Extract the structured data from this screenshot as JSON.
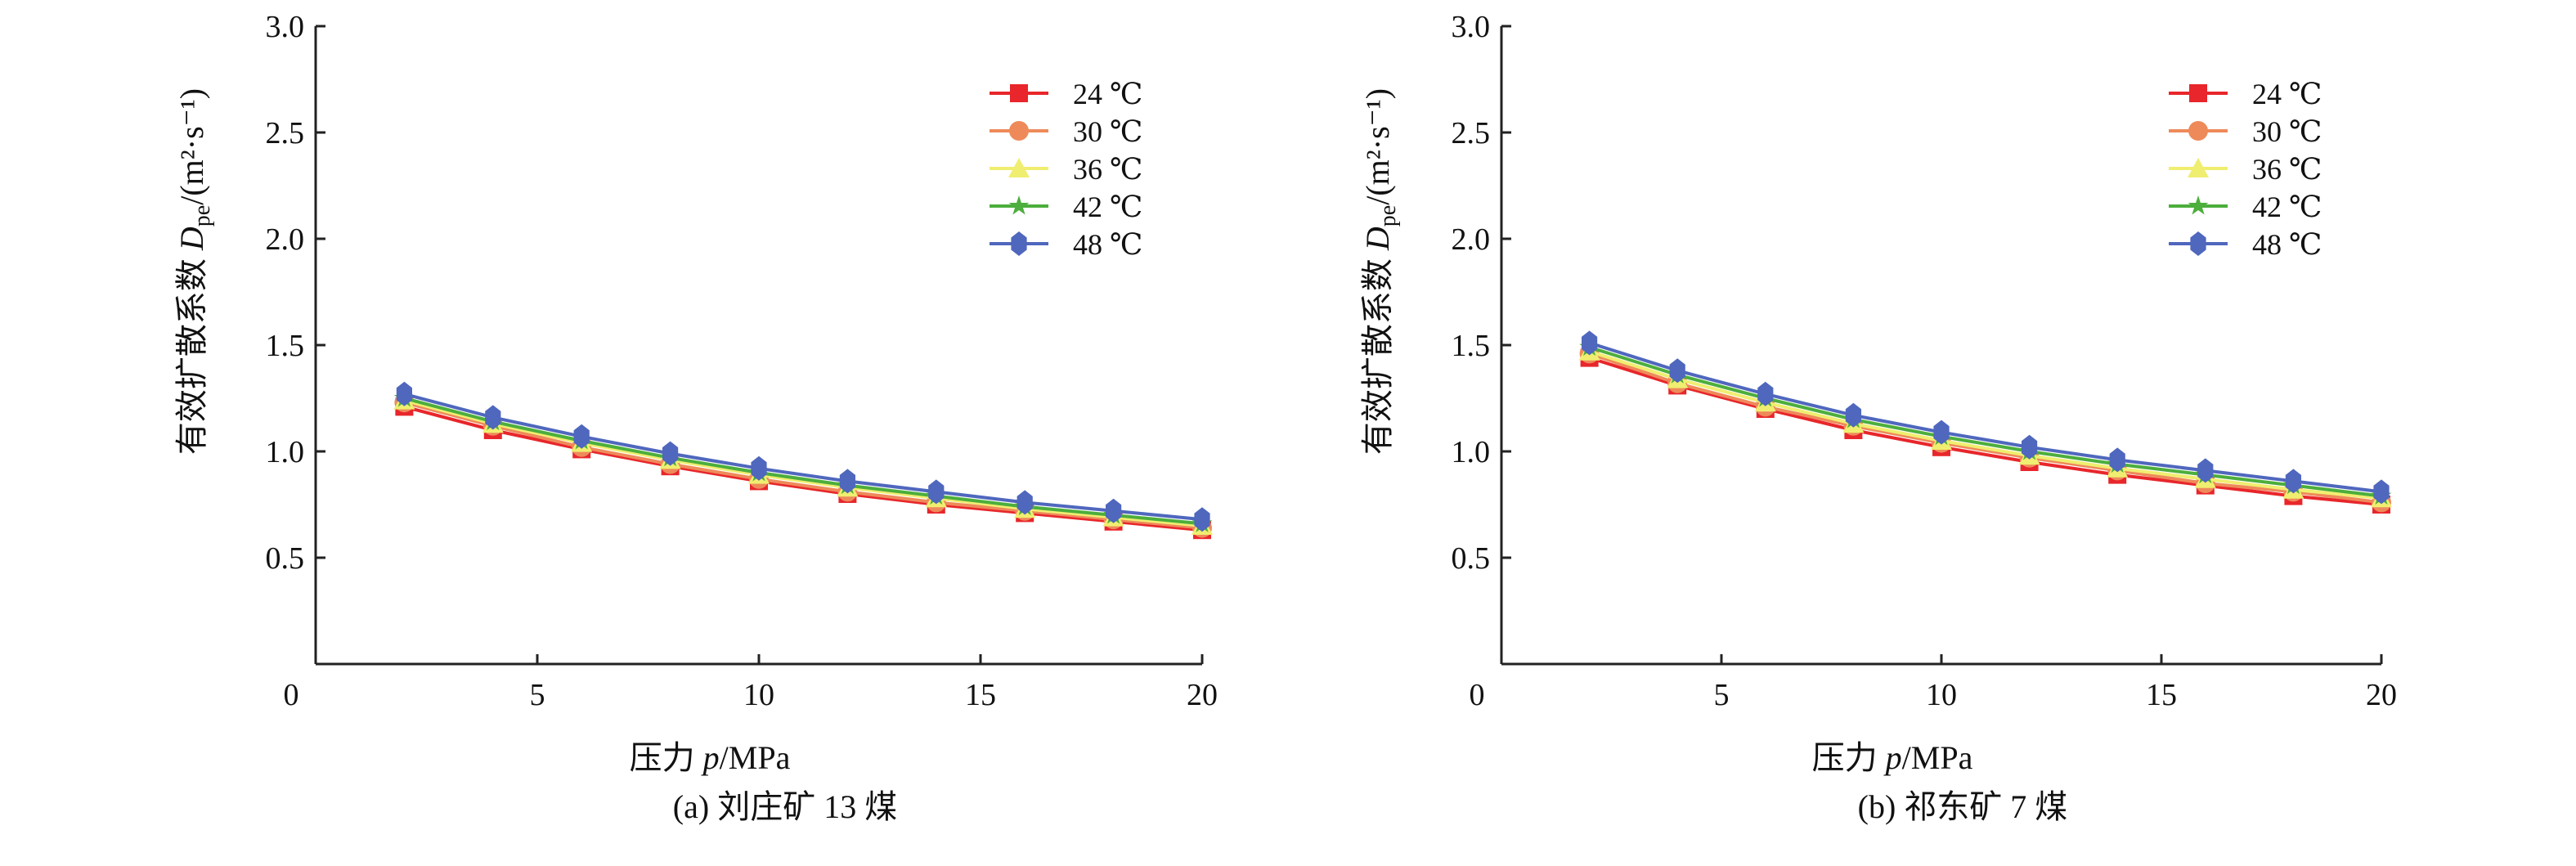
{
  "colors": {
    "24": "#e8262b",
    "30": "#ee8a5a",
    "36": "#f0ee70",
    "42": "#4cae3c",
    "48": "#4f67bd"
  },
  "chart_data": [
    {
      "type": "line",
      "title": "",
      "caption": "(a) 刘庄矿 13 煤",
      "xlabel": "压力 p/MPa",
      "ylabel_prefix": "有效扩散系数 ",
      "ylabel_var": "D",
      "ylabel_sub": "pe",
      "ylabel_unit": "/(m²·s⁻¹)",
      "xlim": [
        0,
        20
      ],
      "ylim": [
        0,
        3.0
      ],
      "xticks": [
        "0",
        "5",
        "10",
        "15",
        "20"
      ],
      "yticks": [
        "0.5",
        "1.0",
        "1.5",
        "2.0",
        "2.5",
        "3.0"
      ],
      "legend_position": "top-right",
      "x": [
        2,
        4,
        6,
        8,
        10,
        12,
        14,
        16,
        18,
        20
      ],
      "series": [
        {
          "name": "24 ℃",
          "marker": "square",
          "values": [
            1.21,
            1.1,
            1.01,
            0.93,
            0.86,
            0.8,
            0.75,
            0.71,
            0.67,
            0.63
          ]
        },
        {
          "name": "30 ℃",
          "marker": "circle",
          "values": [
            1.23,
            1.12,
            1.02,
            0.94,
            0.87,
            0.81,
            0.76,
            0.72,
            0.68,
            0.64
          ]
        },
        {
          "name": "36 ℃",
          "marker": "triangle",
          "values": [
            1.24,
            1.13,
            1.04,
            0.96,
            0.89,
            0.83,
            0.78,
            0.73,
            0.69,
            0.65
          ]
        },
        {
          "name": "42 ℃",
          "marker": "star",
          "values": [
            1.25,
            1.14,
            1.05,
            0.97,
            0.9,
            0.84,
            0.79,
            0.74,
            0.7,
            0.66
          ]
        },
        {
          "name": "48 ℃",
          "marker": "hexagon",
          "values": [
            1.27,
            1.16,
            1.07,
            0.99,
            0.92,
            0.86,
            0.81,
            0.76,
            0.72,
            0.68
          ]
        }
      ]
    },
    {
      "type": "line",
      "title": "",
      "caption": "(b) 祁东矿 7 煤",
      "xlabel": "压力 p/MPa",
      "ylabel_prefix": "有效扩散系数 ",
      "ylabel_var": "D",
      "ylabel_sub": "pe",
      "ylabel_unit": "/(m²·s⁻¹)",
      "xlim": [
        0,
        20
      ],
      "ylim": [
        0,
        3.0
      ],
      "xticks": [
        "0",
        "5",
        "10",
        "15",
        "20"
      ],
      "yticks": [
        "0.5",
        "1.0",
        "1.5",
        "2.0",
        "2.5",
        "3.0"
      ],
      "legend_position": "top-right",
      "x": [
        2,
        4,
        6,
        8,
        10,
        12,
        14,
        16,
        18,
        20
      ],
      "series": [
        {
          "name": "24 ℃",
          "marker": "square",
          "values": [
            1.44,
            1.31,
            1.2,
            1.1,
            1.02,
            0.95,
            0.89,
            0.84,
            0.79,
            0.75
          ]
        },
        {
          "name": "30 ℃",
          "marker": "circle",
          "values": [
            1.46,
            1.32,
            1.21,
            1.12,
            1.04,
            0.97,
            0.91,
            0.85,
            0.81,
            0.76
          ]
        },
        {
          "name": "36 ℃",
          "marker": "triangle",
          "values": [
            1.47,
            1.34,
            1.23,
            1.13,
            1.05,
            0.98,
            0.92,
            0.87,
            0.82,
            0.78
          ]
        },
        {
          "name": "42 ℃",
          "marker": "star",
          "values": [
            1.49,
            1.36,
            1.25,
            1.15,
            1.07,
            1.0,
            0.94,
            0.89,
            0.84,
            0.79
          ]
        },
        {
          "name": "48 ℃",
          "marker": "hexagon",
          "values": [
            1.51,
            1.38,
            1.27,
            1.17,
            1.09,
            1.02,
            0.96,
            0.91,
            0.86,
            0.81
          ]
        }
      ]
    }
  ]
}
